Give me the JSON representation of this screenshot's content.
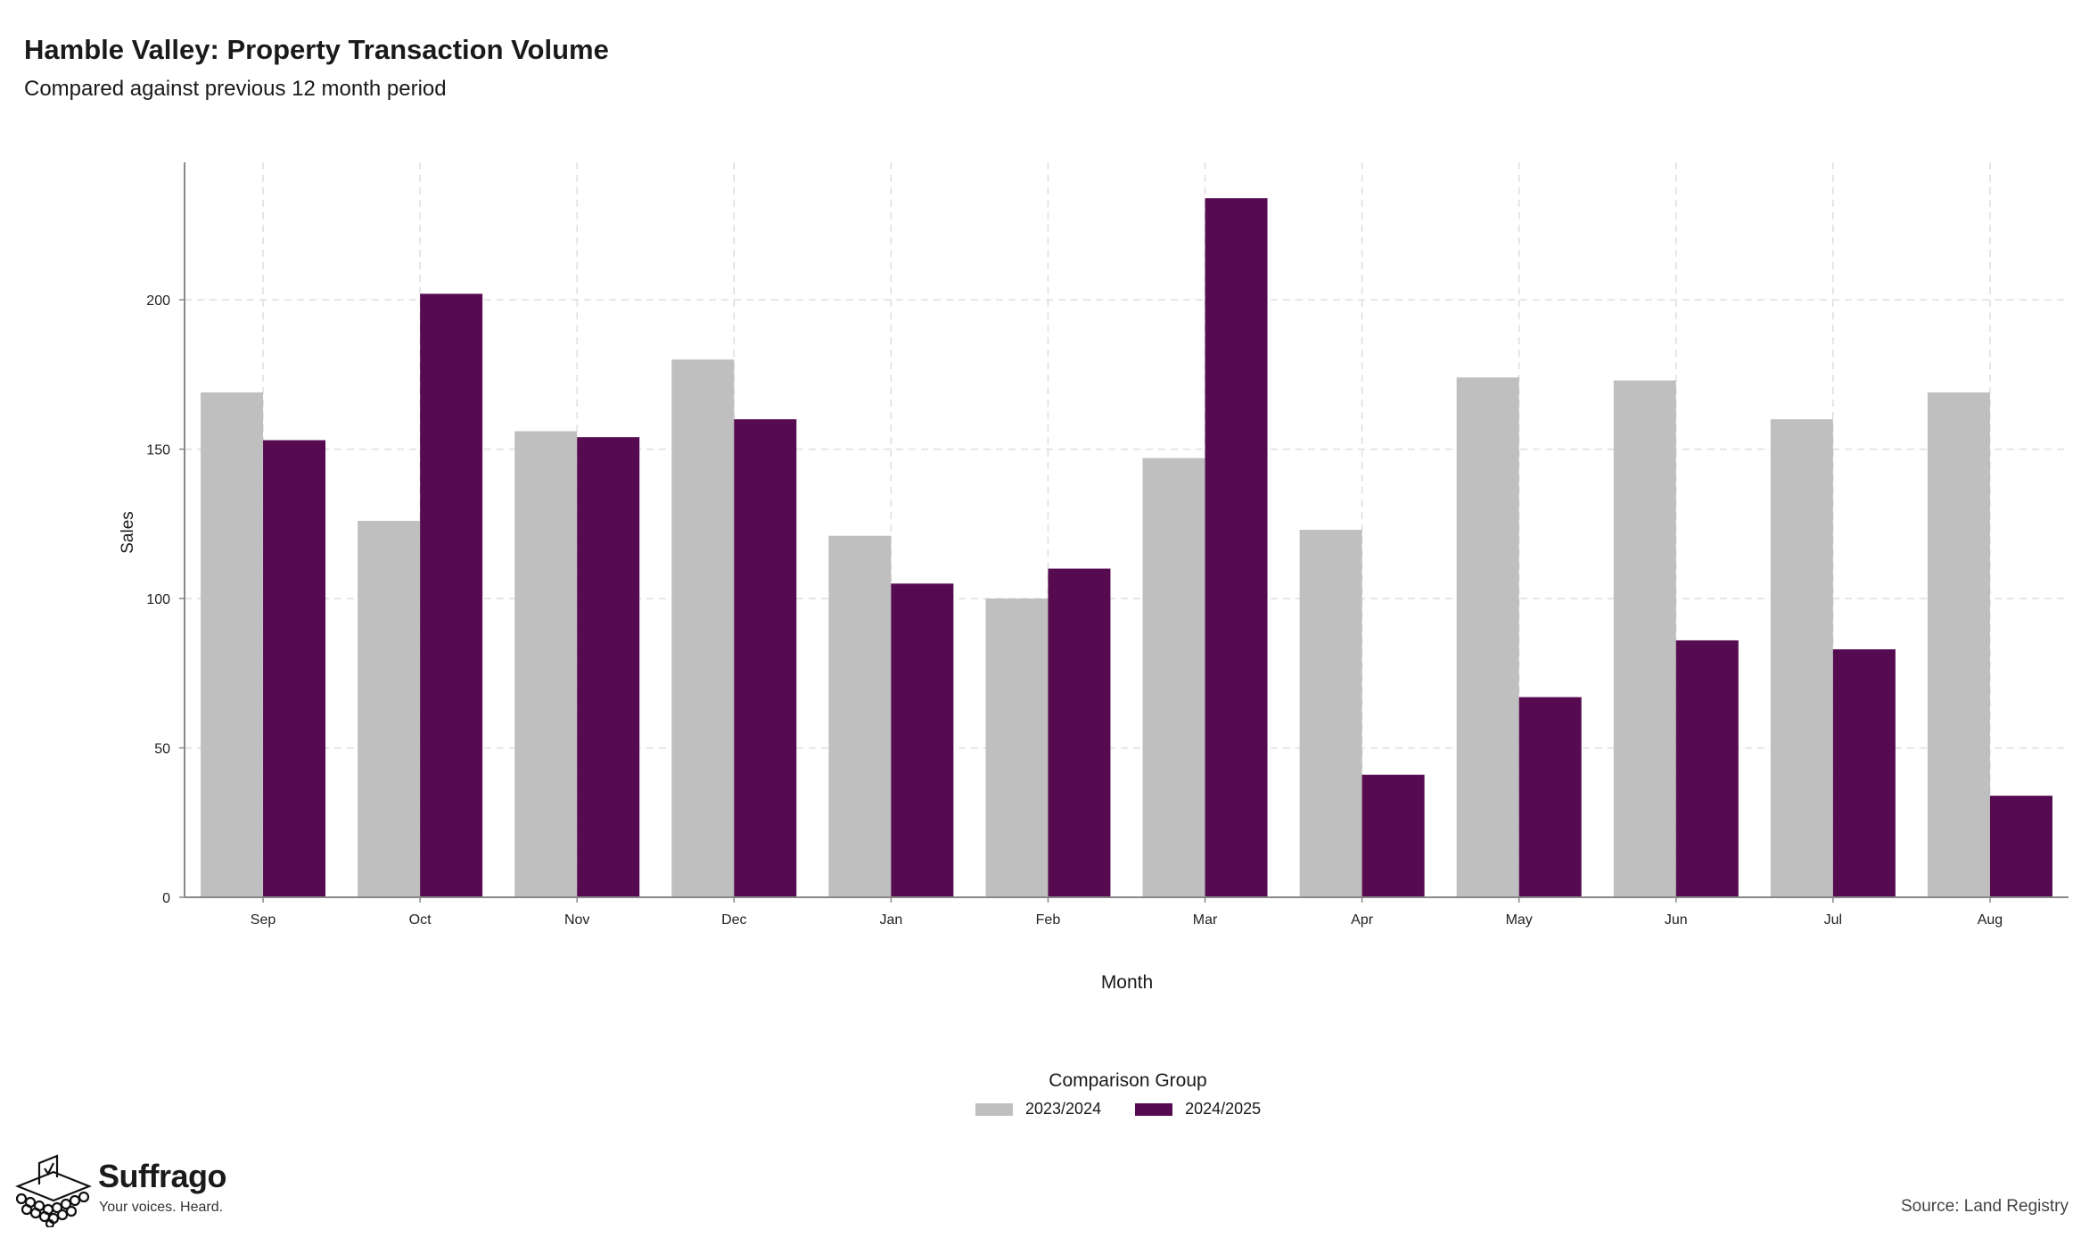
{
  "header": {
    "title": "Hamble Valley: Property Transaction Volume",
    "subtitle": "Compared against previous 12 month period"
  },
  "legend": {
    "title": "Comparison Group",
    "items": [
      {
        "label": "2023/2024",
        "color": "#bfbfbf"
      },
      {
        "label": "2024/2025",
        "color": "#560b51"
      }
    ]
  },
  "branding": {
    "name": "Suffrago",
    "tagline": "Your voices. Heard.",
    "logo_icon": "ballot-box-icon"
  },
  "source": "Source: Land Registry",
  "chart_data": {
    "type": "bar",
    "categories": [
      "Sep",
      "Oct",
      "Nov",
      "Dec",
      "Jan",
      "Feb",
      "Mar",
      "Apr",
      "May",
      "Jun",
      "Jul",
      "Aug"
    ],
    "series": [
      {
        "name": "2023/2024",
        "color": "#bfbfbf",
        "values": [
          169,
          126,
          156,
          180,
          121,
          100,
          147,
          123,
          174,
          173,
          160,
          169
        ]
      },
      {
        "name": "2024/2025",
        "color": "#560b51",
        "values": [
          153,
          202,
          154,
          160,
          105,
          110,
          234,
          41,
          67,
          86,
          83,
          34
        ]
      }
    ],
    "xlabel": "Month",
    "ylabel": "Sales",
    "ylim": [
      0,
      246
    ],
    "yticks": [
      0,
      50,
      100,
      150,
      200
    ],
    "grid": true,
    "legend_position": "bottom"
  }
}
